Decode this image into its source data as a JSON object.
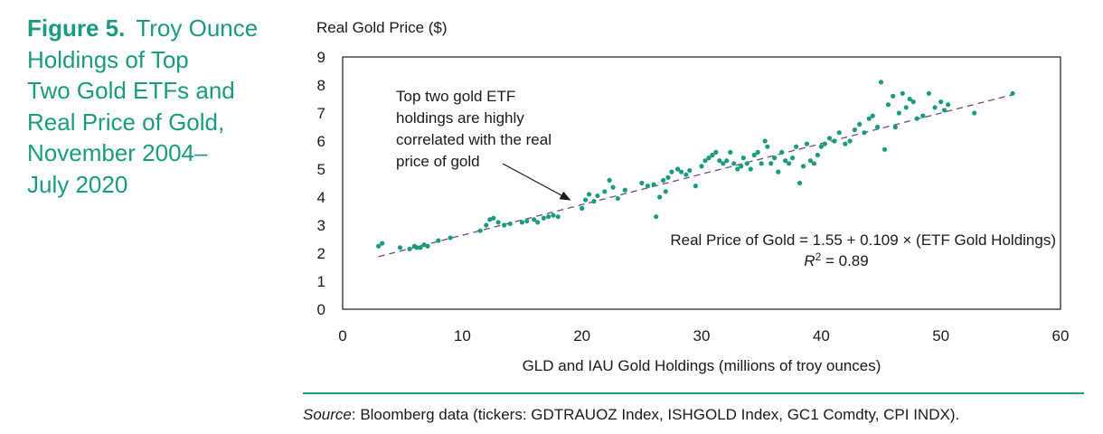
{
  "figure": {
    "number": "Figure 5.",
    "title_lines": [
      "Troy Ounce",
      "Holdings of Top",
      "Two Gold ETFs and",
      "Real Price of Gold,",
      "November 2004–",
      "July 2020"
    ]
  },
  "source": {
    "label": "Source",
    "text": ": Bloomberg data (tickers: GDTRAUOZ Index, ISHGOLD Index, GC1 Comdty, CPI INDX)."
  },
  "colors": {
    "accent": "#1a9a7e",
    "points": "#1a9a7e",
    "trendline": "#6b4c8c",
    "text": "#1a1a1a"
  },
  "chart_data": {
    "type": "scatter",
    "ylabel": "Real Gold Price ($)",
    "xlabel": "GLD and IAU Gold Holdings (millions of troy ounces)",
    "xlim": [
      0,
      60
    ],
    "ylim": [
      0,
      9
    ],
    "x_ticks": [
      0,
      10,
      20,
      30,
      40,
      50,
      60
    ],
    "y_ticks": [
      0,
      1,
      2,
      3,
      4,
      5,
      6,
      7,
      8,
      9
    ],
    "grid": false,
    "annotation": {
      "lines": [
        "Top two gold ETF",
        "holdings are highly",
        "correlated with the real",
        "price of gold"
      ],
      "arrow_to": [
        19,
        3.9
      ]
    },
    "equation": "Real Price of Gold = 1.55 + 0.109 × (ETF Gold Holdings)",
    "r2": {
      "symbol": "R",
      "exp": "2",
      "value": " = 0.89"
    },
    "trendline": {
      "intercept": 1.55,
      "slope": 0.109,
      "x_range": [
        3,
        56
      ]
    },
    "series": [
      {
        "points": [
          [
            3.0,
            2.25
          ],
          [
            3.3,
            2.35
          ],
          [
            4.8,
            2.2
          ],
          [
            5.6,
            2.15
          ],
          [
            6.0,
            2.25
          ],
          [
            6.2,
            2.2
          ],
          [
            6.5,
            2.2
          ],
          [
            6.8,
            2.3
          ],
          [
            7.1,
            2.25
          ],
          [
            8.0,
            2.45
          ],
          [
            9.0,
            2.55
          ],
          [
            11.5,
            2.8
          ],
          [
            12.0,
            3.0
          ],
          [
            12.3,
            3.2
          ],
          [
            12.6,
            3.25
          ],
          [
            13.0,
            3.1
          ],
          [
            13.5,
            3.0
          ],
          [
            14.0,
            3.05
          ],
          [
            15.0,
            3.1
          ],
          [
            15.4,
            3.15
          ],
          [
            16.0,
            3.2
          ],
          [
            16.3,
            3.1
          ],
          [
            16.8,
            3.25
          ],
          [
            17.2,
            3.3
          ],
          [
            17.6,
            3.35
          ],
          [
            18.0,
            3.3
          ],
          [
            20.0,
            3.6
          ],
          [
            20.3,
            3.9
          ],
          [
            20.6,
            4.1
          ],
          [
            21.0,
            3.85
          ],
          [
            21.3,
            4.05
          ],
          [
            21.9,
            4.2
          ],
          [
            22.3,
            4.6
          ],
          [
            22.6,
            4.35
          ],
          [
            23.0,
            3.95
          ],
          [
            23.6,
            4.25
          ],
          [
            25.0,
            4.5
          ],
          [
            25.5,
            4.4
          ],
          [
            26.0,
            4.45
          ],
          [
            26.2,
            3.3
          ],
          [
            26.5,
            4.0
          ],
          [
            26.8,
            4.6
          ],
          [
            27.0,
            4.2
          ],
          [
            27.2,
            4.7
          ],
          [
            27.5,
            4.9
          ],
          [
            28.0,
            5.0
          ],
          [
            28.3,
            4.9
          ],
          [
            28.7,
            4.8
          ],
          [
            29.0,
            4.95
          ],
          [
            29.5,
            4.4
          ],
          [
            30.0,
            5.1
          ],
          [
            30.3,
            5.3
          ],
          [
            30.6,
            5.4
          ],
          [
            30.9,
            5.5
          ],
          [
            31.2,
            5.6
          ],
          [
            31.5,
            5.3
          ],
          [
            31.8,
            5.2
          ],
          [
            32.1,
            5.3
          ],
          [
            32.4,
            5.6
          ],
          [
            32.7,
            5.2
          ],
          [
            33.0,
            5.0
          ],
          [
            33.3,
            5.1
          ],
          [
            33.5,
            5.4
          ],
          [
            33.8,
            5.2
          ],
          [
            34.1,
            5.0
          ],
          [
            34.4,
            5.5
          ],
          [
            34.7,
            5.6
          ],
          [
            35.0,
            5.2
          ],
          [
            35.3,
            6.0
          ],
          [
            35.5,
            5.8
          ],
          [
            35.8,
            5.2
          ],
          [
            36.1,
            5.4
          ],
          [
            36.4,
            4.9
          ],
          [
            36.7,
            5.6
          ],
          [
            37.0,
            5.3
          ],
          [
            37.3,
            5.2
          ],
          [
            37.6,
            5.4
          ],
          [
            37.9,
            5.8
          ],
          [
            38.2,
            4.5
          ],
          [
            38.5,
            5.1
          ],
          [
            38.8,
            5.9
          ],
          [
            39.1,
            5.3
          ],
          [
            39.4,
            5.2
          ],
          [
            39.7,
            5.5
          ],
          [
            40.0,
            5.8
          ],
          [
            40.3,
            5.9
          ],
          [
            40.7,
            6.1
          ],
          [
            41.1,
            6.0
          ],
          [
            41.5,
            6.3
          ],
          [
            42.0,
            5.9
          ],
          [
            42.4,
            6.0
          ],
          [
            42.8,
            6.4
          ],
          [
            43.2,
            6.6
          ],
          [
            43.6,
            6.3
          ],
          [
            44.0,
            6.8
          ],
          [
            44.3,
            6.9
          ],
          [
            44.7,
            6.5
          ],
          [
            45.0,
            8.1
          ],
          [
            45.3,
            5.7
          ],
          [
            45.6,
            7.3
          ],
          [
            46.0,
            7.6
          ],
          [
            46.2,
            6.5
          ],
          [
            46.5,
            7.0
          ],
          [
            46.8,
            7.7
          ],
          [
            47.1,
            7.2
          ],
          [
            47.4,
            7.5
          ],
          [
            47.7,
            7.4
          ],
          [
            48.0,
            6.8
          ],
          [
            48.5,
            6.9
          ],
          [
            49.0,
            7.7
          ],
          [
            49.5,
            7.2
          ],
          [
            50.0,
            7.4
          ],
          [
            50.3,
            7.1
          ],
          [
            50.6,
            7.3
          ],
          [
            52.8,
            7.0
          ],
          [
            56.0,
            7.7
          ]
        ]
      }
    ]
  }
}
